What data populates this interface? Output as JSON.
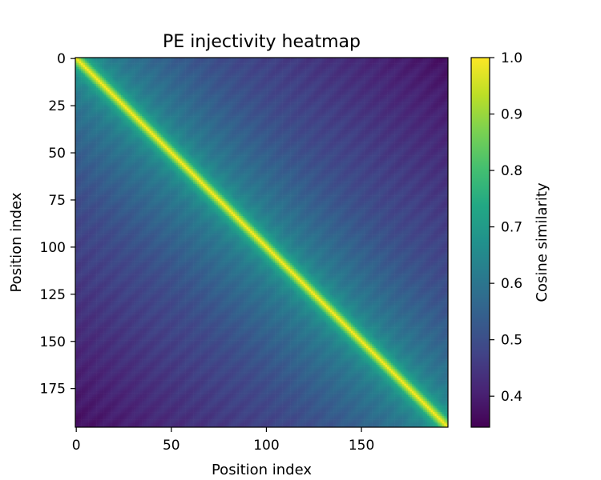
{
  "chart_data": {
    "type": "heatmap",
    "title": "PE injectivity heatmap",
    "xlabel": "Position index",
    "ylabel": "Position index",
    "n": 196,
    "xlim": [
      -0.5,
      195.5
    ],
    "ylim": [
      195.5,
      -0.5
    ],
    "xticks": [
      0,
      50,
      100,
      150
    ],
    "xtick_labels": [
      "0",
      "50",
      "100",
      "150"
    ],
    "yticks": [
      0,
      25,
      50,
      75,
      100,
      125,
      150,
      175
    ],
    "ytick_labels": [
      "0",
      "25",
      "50",
      "75",
      "100",
      "125",
      "150",
      "175"
    ],
    "colorbar": {
      "label": "Cosine similarity",
      "vmin": 0.345,
      "vmax": 1.0,
      "ticks": [
        0.4,
        0.5,
        0.6,
        0.7,
        0.8,
        0.9,
        1.0
      ],
      "tick_labels": [
        "0.4",
        "0.5",
        "0.6",
        "0.7",
        "0.8",
        "0.9",
        "1.0"
      ]
    },
    "colormap": "viridis",
    "profile_by_offset": {
      "offsets": [
        0,
        2,
        5,
        10,
        20,
        40,
        60,
        80,
        100,
        120,
        150,
        180,
        195
      ],
      "similarity": [
        1.0,
        0.9,
        0.74,
        0.66,
        0.61,
        0.56,
        0.52,
        0.49,
        0.47,
        0.45,
        0.42,
        0.39,
        0.37
      ]
    },
    "grid": false
  }
}
